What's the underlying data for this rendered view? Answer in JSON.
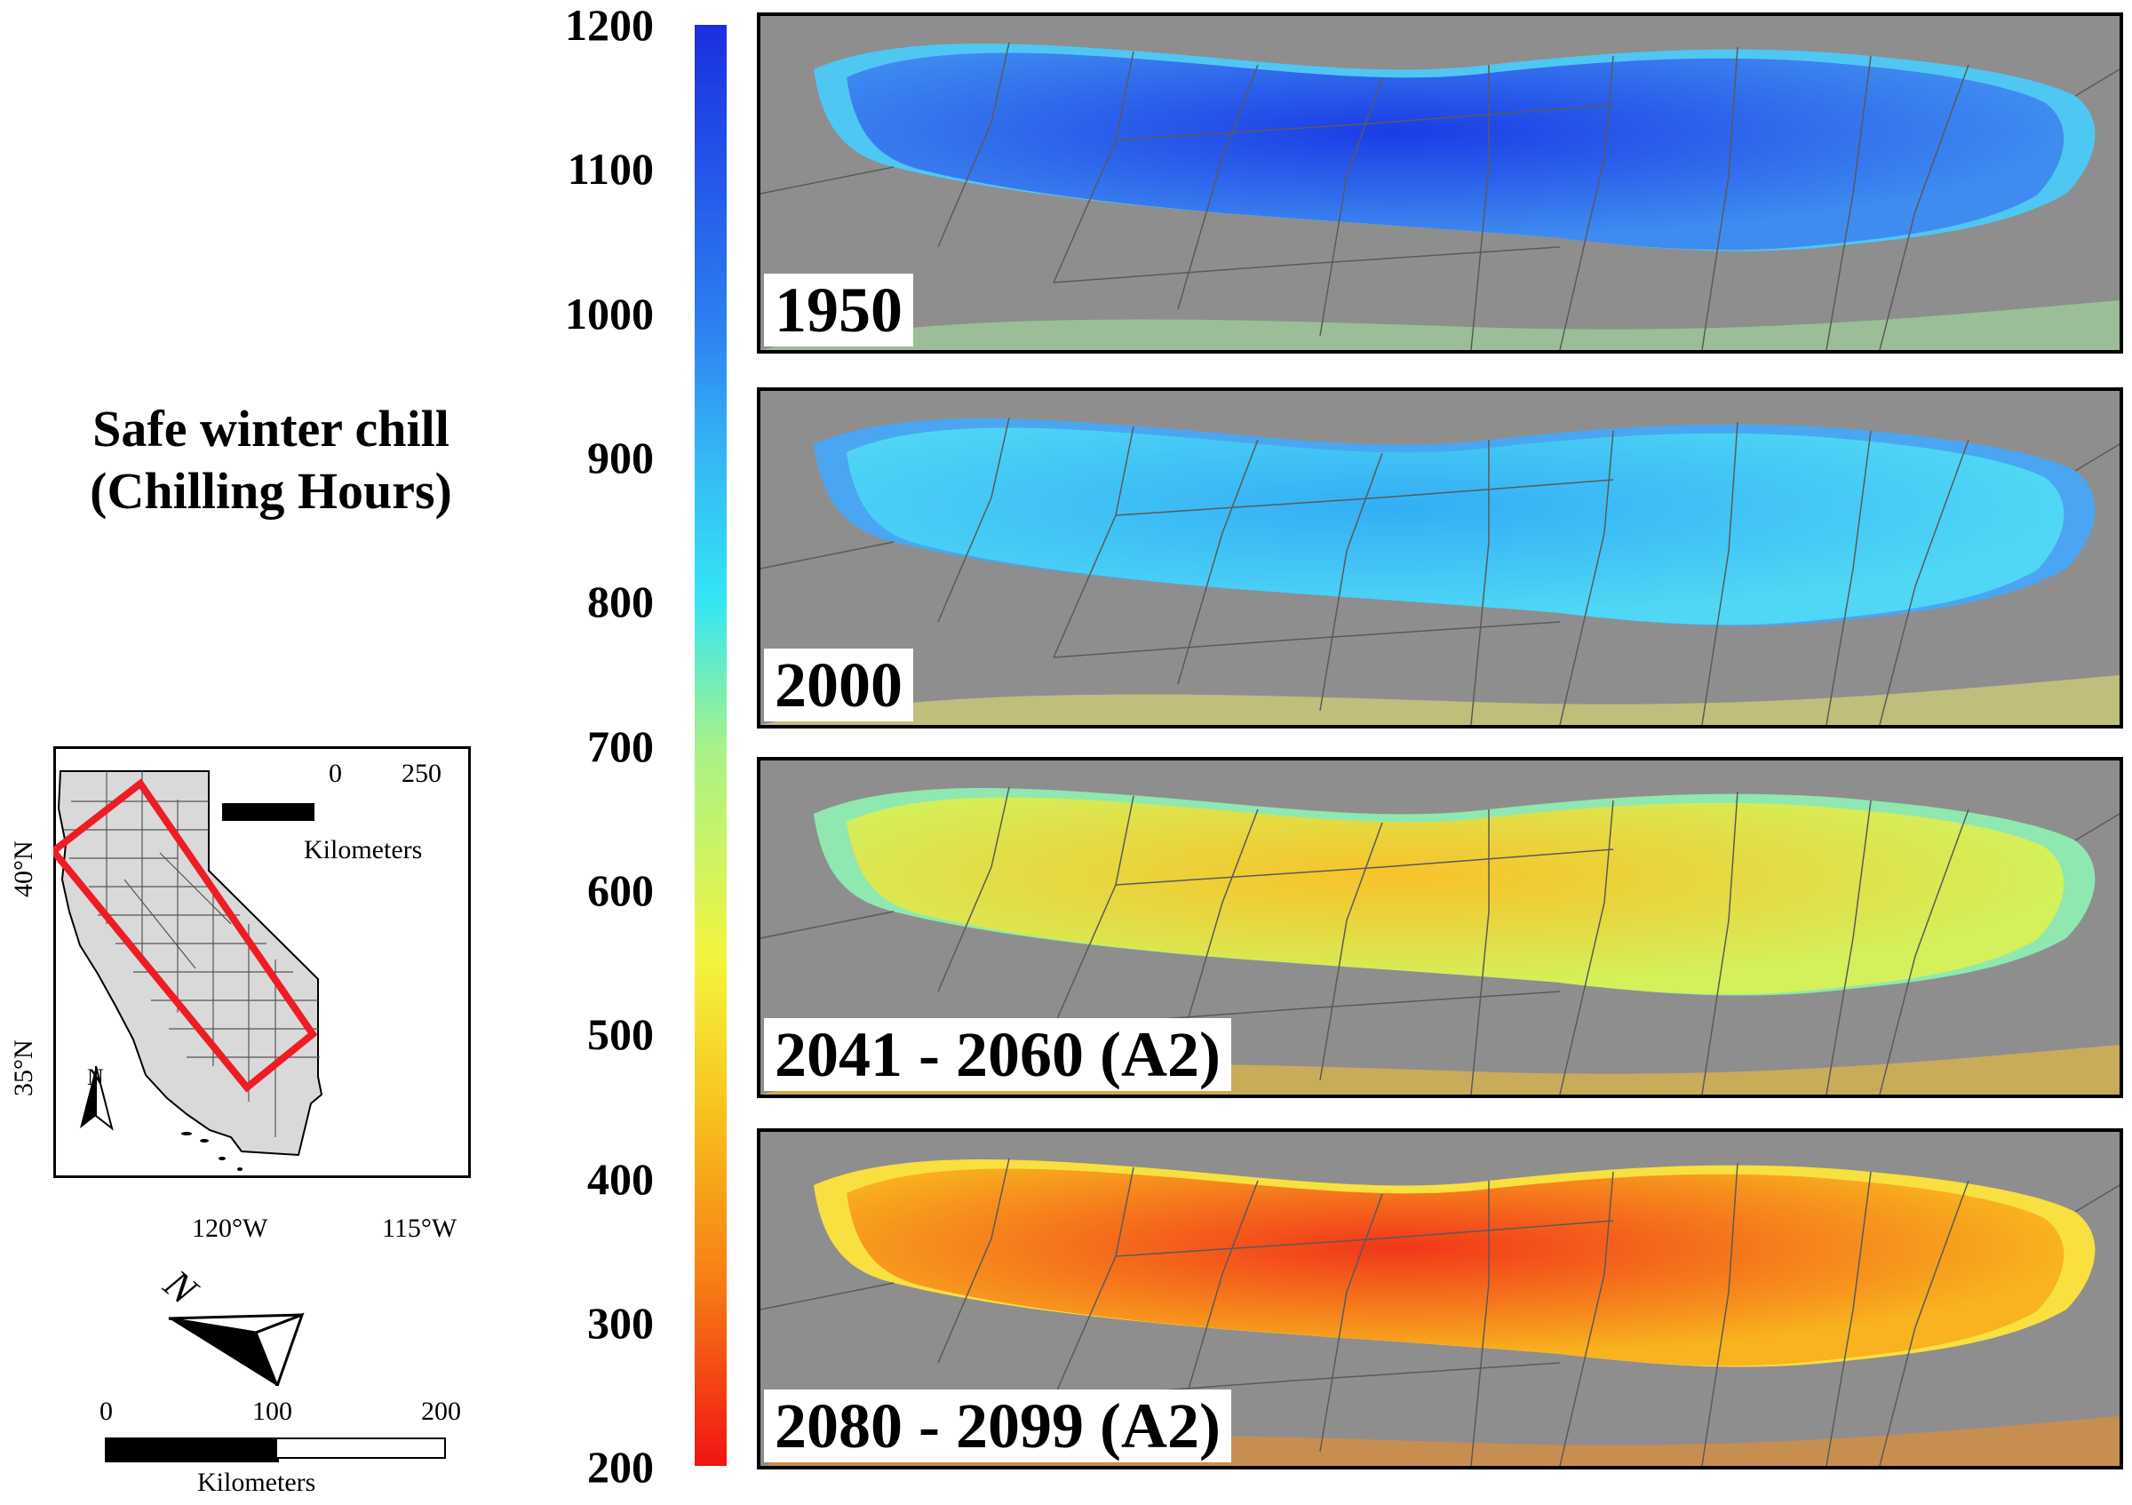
{
  "title": {
    "line1": "Safe winter chill",
    "line2": "(Chilling Hours)"
  },
  "colorbar": {
    "ticks": [
      "1200",
      "1100",
      "1000",
      "900",
      "800",
      "700",
      "600",
      "500",
      "400",
      "300",
      "200"
    ],
    "colors": [
      "#1a2fe0",
      "#2c7cf0",
      "#35b7f5",
      "#33e6f5",
      "#a6f28a",
      "#f4f43c",
      "#f8c41e",
      "#f77f15",
      "#f21414"
    ]
  },
  "panels": [
    {
      "label": "1950",
      "colors": {
        "main": "#3f8cf0",
        "core": "#1b3ce6",
        "edge": "#4fc7f3",
        "south": "#a6e6a2"
      }
    },
    {
      "label": "2000",
      "colors": {
        "main": "#4fd7f5",
        "core": "#33aef5",
        "edge": "#4aa6f2",
        "south": "#e8e66b"
      }
    },
    {
      "label": "2041 - 2060 (A2)",
      "colors": {
        "main": "#d4f05a",
        "core": "#f8c22a",
        "edge": "#8ee8b0",
        "south": "#f7c430"
      }
    },
    {
      "label": "2080 - 2099 (A2)",
      "colors": {
        "main": "#f8b31e",
        "core": "#f2361a",
        "edge": "#f7e040",
        "south": "#f4901e"
      }
    }
  ],
  "inset": {
    "scale_numbers": [
      "0",
      "250"
    ],
    "scale_unit": "Kilometers",
    "lat_labels": [
      "40°N",
      "35°N"
    ],
    "lon_labels": [
      "120°W",
      "115°W"
    ],
    "north": "N",
    "highlight_color": "#ee1c25"
  },
  "main_scale": {
    "numbers": [
      "0",
      "100",
      "200"
    ],
    "unit": "Kilometers",
    "north": "N"
  },
  "map_colors": {
    "background": "#8e8e8e",
    "boundaries": "#5a5a5a",
    "state_fill": "#d9d9d9"
  }
}
